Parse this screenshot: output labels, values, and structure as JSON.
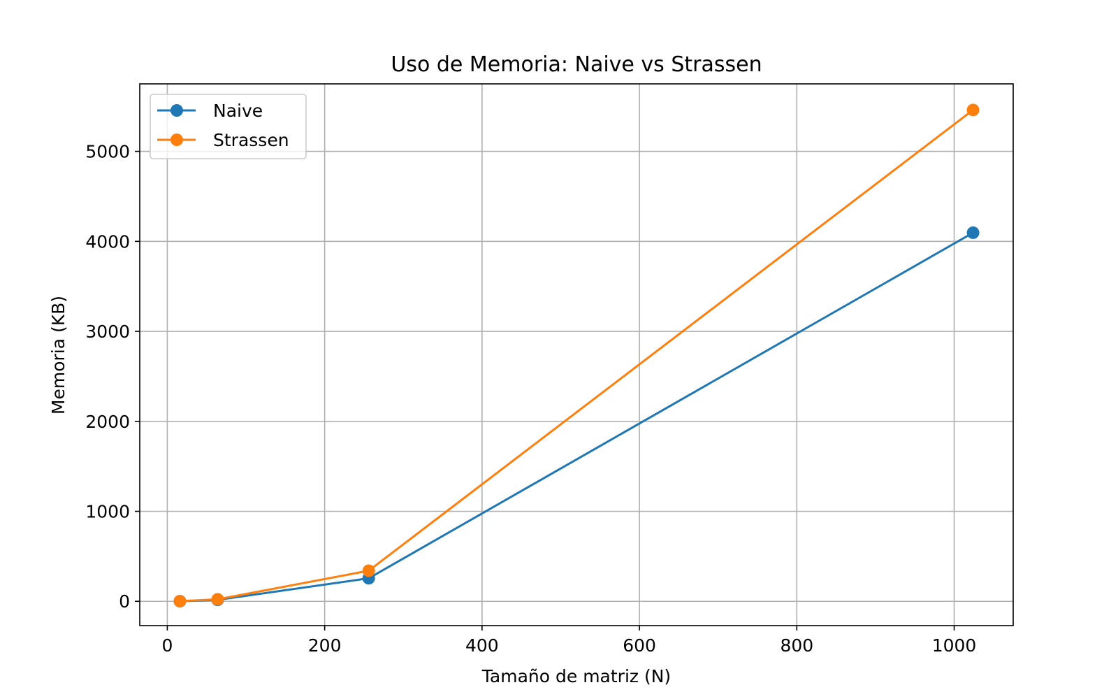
{
  "chart_data": {
    "type": "line",
    "title": "Uso de Memoria: Naive vs Strassen",
    "xlabel": "Tamaño de matriz (N)",
    "ylabel": "Memoria (KB)",
    "xlim": [
      -35,
      1075
    ],
    "ylim": [
      -270,
      5750
    ],
    "xticks": [
      0,
      200,
      400,
      600,
      800,
      1000
    ],
    "yticks": [
      0,
      1000,
      2000,
      3000,
      4000,
      5000
    ],
    "grid": true,
    "legend": "upper-left",
    "x": [
      16,
      64,
      256,
      1024
    ],
    "series": [
      {
        "name": "Naive",
        "values": [
          1,
          16,
          256,
          4096
        ],
        "color": "#1f77b4"
      },
      {
        "name": "Strassen",
        "values": [
          2,
          22,
          340,
          5460
        ],
        "color": "#ff7f0e"
      }
    ]
  }
}
